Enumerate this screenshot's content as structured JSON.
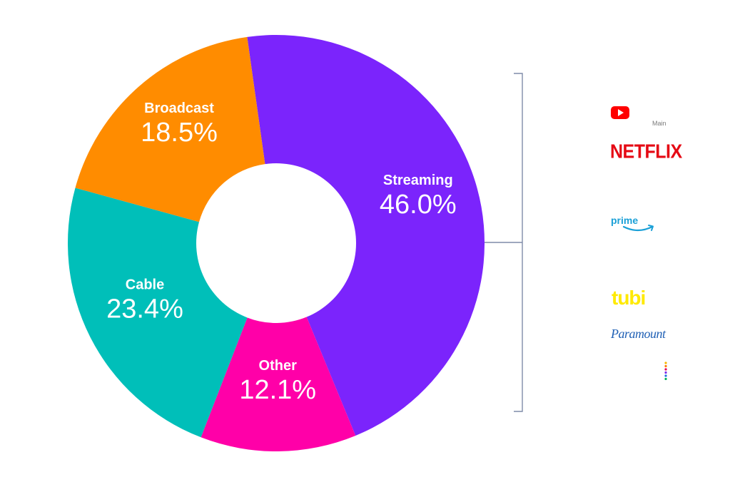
{
  "chart_data": {
    "type": "pie",
    "donut": true,
    "categories": [
      "Streaming",
      "Other",
      "Cable",
      "Broadcast"
    ],
    "values": [
      46.0,
      12.1,
      23.4,
      18.5
    ],
    "value_labels": [
      "46.0%",
      "12.1%",
      "23.4%",
      "18.5%"
    ],
    "colors": [
      "#7b24fc",
      "#ff00a8",
      "#00bfb9",
      "#ff8c00"
    ],
    "title": "",
    "start_angle_deg": -8,
    "bracket": {
      "target": "Streaming",
      "color": "#7f8ca8"
    }
  },
  "logos": {
    "youtube": {
      "icon": "youtube-play-icon",
      "caption": "Main",
      "color": "#ff0000"
    },
    "netflix": {
      "text": "NETFLIX",
      "color": "#e50914"
    },
    "prime": {
      "text": "prime",
      "icon": "amazon-smile-icon",
      "color": "#1ba0d7"
    },
    "tubi": {
      "text": "tubi",
      "color": "#ffea00"
    },
    "paramount": {
      "text": "Paramount",
      "color": "#2161b5"
    },
    "peacock": {
      "icon": "peacock-dots-icon"
    }
  }
}
